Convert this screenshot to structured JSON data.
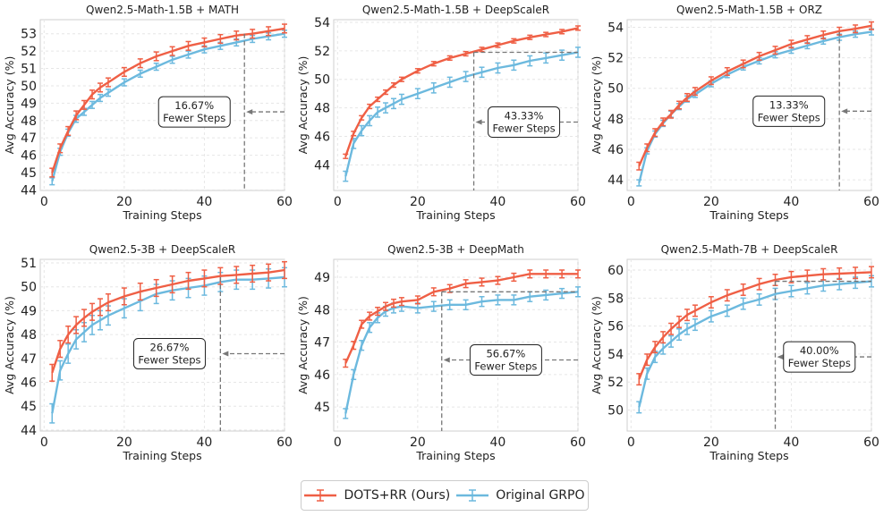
{
  "legend": {
    "red_label": "DOTS+RR (Ours)",
    "blue_label": "Original GRPO"
  },
  "colors": {
    "red": "#ef5f45",
    "blue": "#6cb9de"
  },
  "chart_data": [
    {
      "type": "line",
      "title": "Qwen2.5-Math-1.5B + MATH",
      "xlabel": "Training Steps",
      "ylabel": "Avg Accuracy (%)",
      "xlim": [
        -0.96,
        60
      ],
      "ylim": [
        43.97,
        53.81
      ],
      "xticks": [
        0,
        20,
        40,
        60
      ],
      "yticks": [
        44,
        45,
        46,
        47,
        48,
        49,
        50,
        51,
        52,
        53
      ],
      "x": [
        2,
        4,
        6,
        8,
        10,
        12,
        14,
        16,
        20,
        24,
        28,
        32,
        36,
        40,
        44,
        48,
        52,
        56,
        60
      ],
      "series": [
        {
          "name": "DOTS+RR (Ours)",
          "err": 0.25,
          "values": [
            45.0,
            46.4,
            47.4,
            48.3,
            48.9,
            49.5,
            49.9,
            50.2,
            50.8,
            51.3,
            51.7,
            52.0,
            52.3,
            52.5,
            52.7,
            52.9,
            53.0,
            53.15,
            53.3
          ]
        },
        {
          "name": "Original GRPO",
          "err": 0.2,
          "values": [
            44.5,
            46.2,
            47.3,
            48.1,
            48.5,
            48.9,
            49.3,
            49.6,
            50.2,
            50.7,
            51.1,
            51.5,
            51.8,
            52.1,
            52.3,
            52.5,
            52.7,
            52.85,
            53.0
          ]
        }
      ],
      "annotation": {
        "text1": "16.67%",
        "text2": "Fewer Steps",
        "step": 50,
        "level": 53.0,
        "horizontal": false,
        "arrow_y": 48.5,
        "label_x": 37.5
      }
    },
    {
      "type": "line",
      "title": "Qwen2.5-Math-1.5B + DeepScaleR",
      "xlabel": "Training Steps",
      "ylabel": "Avg Accuracy (%)",
      "xlim": [
        -0.96,
        60
      ],
      "ylim": [
        42.2,
        54.19
      ],
      "xticks": [
        0,
        20,
        40,
        60
      ],
      "yticks": [
        44,
        46,
        48,
        50,
        52,
        54
      ],
      "x": [
        2,
        4,
        6,
        8,
        10,
        12,
        14,
        16,
        20,
        24,
        28,
        32,
        36,
        40,
        44,
        48,
        52,
        56,
        60
      ],
      "series": [
        {
          "name": "DOTS+RR (Ours)",
          "err": 0.15,
          "values": [
            44.6,
            46.2,
            47.3,
            48.1,
            48.6,
            49.1,
            49.6,
            50.0,
            50.6,
            51.1,
            51.5,
            51.8,
            52.1,
            52.4,
            52.7,
            52.95,
            53.15,
            53.35,
            53.6
          ]
        },
        {
          "name": "Original GRPO",
          "err": 0.35,
          "values": [
            43.2,
            45.5,
            46.4,
            47.1,
            47.7,
            48.0,
            48.3,
            48.6,
            49.0,
            49.4,
            49.8,
            50.2,
            50.5,
            50.8,
            51.0,
            51.3,
            51.5,
            51.7,
            51.9
          ]
        }
      ],
      "annotation": {
        "text1": "43.33%",
        "text2": "Fewer Steps",
        "step": 34,
        "level": 51.9,
        "horizontal": true,
        "arrow_y": 47.0,
        "label_x": 46.5
      }
    },
    {
      "type": "line",
      "title": "Qwen2.5-Math-1.5B + ORZ",
      "xlabel": "Training Steps",
      "ylabel": "Avg Accuracy (%)",
      "xlim": [
        -0.96,
        60
      ],
      "ylim": [
        43.3,
        54.5
      ],
      "xticks": [
        0,
        20,
        40,
        60
      ],
      "yticks": [
        44,
        46,
        48,
        50,
        52,
        54
      ],
      "x": [
        2,
        4,
        6,
        8,
        10,
        12,
        14,
        16,
        20,
        24,
        28,
        32,
        36,
        40,
        44,
        48,
        52,
        56,
        60
      ],
      "series": [
        {
          "name": "DOTS+RR (Ours)",
          "err": 0.25,
          "values": [
            44.9,
            46.1,
            47.1,
            47.8,
            48.3,
            48.9,
            49.4,
            49.8,
            50.5,
            51.1,
            51.6,
            52.1,
            52.5,
            52.9,
            53.2,
            53.5,
            53.75,
            53.9,
            54.1
          ]
        },
        {
          "name": "Original GRPO",
          "err": 0.2,
          "values": [
            43.8,
            45.9,
            47.0,
            47.7,
            48.3,
            48.8,
            49.3,
            49.6,
            50.3,
            50.9,
            51.4,
            51.8,
            52.2,
            52.5,
            52.8,
            53.1,
            53.35,
            53.55,
            53.7
          ]
        }
      ],
      "annotation": {
        "text1": "13.33%",
        "text2": "Fewer Steps",
        "step": 52,
        "level": 53.7,
        "horizontal": false,
        "arrow_y": 48.5,
        "label_x": 39.4
      }
    },
    {
      "type": "line",
      "title": "Qwen2.5-3B + DeepScaleR",
      "xlabel": "Training Steps",
      "ylabel": "Avg Accuracy (%)",
      "xlim": [
        -0.96,
        60
      ],
      "ylim": [
        43.96,
        51.15
      ],
      "xticks": [
        0,
        20,
        40,
        60
      ],
      "yticks": [
        44,
        45,
        46,
        47,
        48,
        49,
        50,
        51
      ],
      "x": [
        2,
        4,
        6,
        8,
        10,
        12,
        14,
        16,
        20,
        24,
        28,
        32,
        36,
        40,
        44,
        48,
        52,
        56,
        60
      ],
      "series": [
        {
          "name": "DOTS+RR (Ours)",
          "err": 0.35,
          "values": [
            46.4,
            47.4,
            48.0,
            48.4,
            48.7,
            48.95,
            49.15,
            49.35,
            49.6,
            49.8,
            49.95,
            50.1,
            50.25,
            50.35,
            50.45,
            50.5,
            50.55,
            50.6,
            50.7
          ]
        },
        {
          "name": "Original GRPO",
          "err": 0.4,
          "values": [
            44.7,
            46.5,
            47.2,
            47.8,
            48.1,
            48.4,
            48.6,
            48.8,
            49.1,
            49.4,
            49.7,
            49.85,
            49.95,
            50.05,
            50.2,
            50.3,
            50.3,
            50.35,
            50.4
          ]
        }
      ],
      "annotation": {
        "text1": "26.67%",
        "text2": "Fewer Steps",
        "step": 44,
        "level": 50.4,
        "horizontal": false,
        "arrow_y": 47.2,
        "label_x": 31.3
      }
    },
    {
      "type": "line",
      "title": "Qwen2.5-3B + DeepMath",
      "xlabel": "Training Steps",
      "ylabel": "Avg Accuracy (%)",
      "xlim": [
        -0.96,
        60
      ],
      "ylim": [
        44.26,
        49.55
      ],
      "xticks": [
        0,
        20,
        40,
        60
      ],
      "yticks": [
        45,
        46,
        47,
        48,
        49
      ],
      "x": [
        2,
        4,
        6,
        8,
        10,
        12,
        14,
        16,
        20,
        24,
        28,
        32,
        36,
        40,
        44,
        48,
        52,
        56,
        60
      ],
      "series": [
        {
          "name": "DOTS+RR (Ours)",
          "err": 0.12,
          "values": [
            46.35,
            46.9,
            47.55,
            47.8,
            47.95,
            48.1,
            48.2,
            48.25,
            48.3,
            48.55,
            48.65,
            48.8,
            48.85,
            48.9,
            49.0,
            49.1,
            49.1,
            49.1,
            49.1
          ]
        },
        {
          "name": "Original GRPO",
          "err": 0.15,
          "values": [
            44.8,
            46.0,
            46.9,
            47.45,
            47.75,
            47.95,
            48.05,
            48.1,
            48.05,
            48.1,
            48.15,
            48.15,
            48.25,
            48.3,
            48.3,
            48.4,
            48.45,
            48.5,
            48.55
          ]
        }
      ],
      "annotation": {
        "text1": "56.67%",
        "text2": "Fewer Steps",
        "step": 26,
        "level": 48.55,
        "horizontal": true,
        "arrow_y": 46.45,
        "label_x": 42
      }
    },
    {
      "type": "line",
      "title": "Qwen2.5-Math-7B + DeepScaleR",
      "xlabel": "Training Steps",
      "ylabel": "Avg Accuracy (%)",
      "xlim": [
        -0.96,
        60
      ],
      "ylim": [
        48.5,
        60.77
      ],
      "xticks": [
        0,
        20,
        40,
        60
      ],
      "yticks": [
        50,
        52,
        54,
        56,
        58,
        60
      ],
      "x": [
        2,
        4,
        6,
        8,
        10,
        12,
        14,
        16,
        20,
        24,
        28,
        32,
        36,
        40,
        44,
        48,
        52,
        56,
        60
      ],
      "series": [
        {
          "name": "DOTS+RR (Ours)",
          "err": 0.4,
          "values": [
            52.2,
            53.6,
            54.5,
            55.2,
            55.8,
            56.3,
            56.8,
            57.1,
            57.7,
            58.2,
            58.6,
            59.0,
            59.3,
            59.5,
            59.6,
            59.7,
            59.75,
            59.8,
            59.85
          ]
        },
        {
          "name": "Original GRPO",
          "err": 0.4,
          "values": [
            50.2,
            52.6,
            53.8,
            54.4,
            54.9,
            55.4,
            55.8,
            56.1,
            56.7,
            57.1,
            57.6,
            57.9,
            58.3,
            58.5,
            58.7,
            58.9,
            59.0,
            59.1,
            59.2
          ]
        }
      ],
      "annotation": {
        "text1": "40.00%",
        "text2": "Fewer Steps",
        "step": 36,
        "level": 59.2,
        "horizontal": true,
        "arrow_y": 53.8,
        "label_x": 47
      }
    }
  ]
}
